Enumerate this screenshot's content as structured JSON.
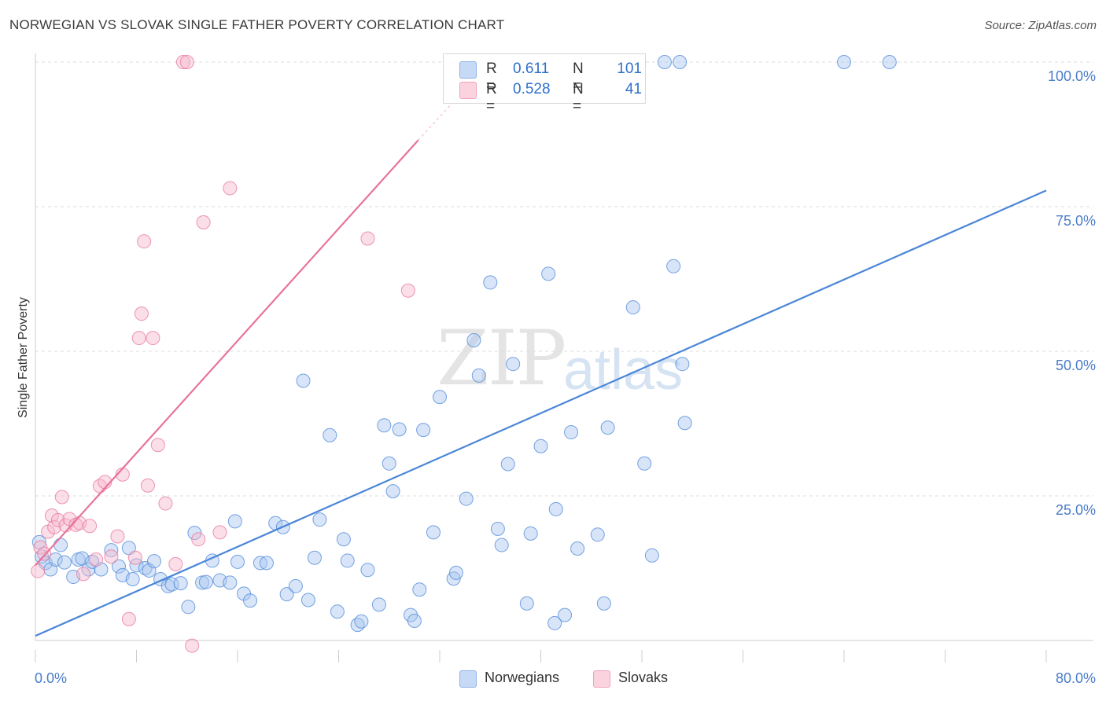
{
  "header": {
    "title": "NORWEGIAN VS SLOVAK SINGLE FATHER POVERTY CORRELATION CHART",
    "source": "Source: ZipAtlas.com"
  },
  "watermark": {
    "part1": "ZIP",
    "part2": "atlas"
  },
  "legend": {
    "rows": [
      {
        "r_label": "R =",
        "r_value": "0.611",
        "n_label": "N =",
        "n_value": "101",
        "color": "#a9c6ef"
      },
      {
        "r_label": "R =",
        "r_value": "0.528",
        "n_label": "N =",
        "n_value": "41",
        "color": "#f7b9cc"
      }
    ]
  },
  "bottom_legend": [
    {
      "label": "Norwegians",
      "color": "#a9c6ef"
    },
    {
      "label": "Slovaks",
      "color": "#f7b9cc"
    }
  ],
  "chart_data": {
    "type": "scatter",
    "title": "NORWEGIAN VS SLOVAK SINGLE FATHER POVERTY CORRELATION CHART",
    "xlabel": "",
    "ylabel": "Single Father Poverty",
    "xlim": [
      0,
      80
    ],
    "ylim": [
      0,
      100
    ],
    "x_tick_labels": [
      "0.0%",
      "80.0%"
    ],
    "y_tick_labels": [
      "25.0%",
      "50.0%",
      "75.0%",
      "100.0%"
    ],
    "y_ticks": [
      25,
      50,
      75,
      100
    ],
    "grid": true,
    "legend_position": "top-center",
    "series": [
      {
        "name": "Norwegians",
        "color": "#4a86d8",
        "fill": "#a9c6ef",
        "trend": {
          "x": [
            0,
            80
          ],
          "y": [
            0.8,
            77.8
          ]
        },
        "points": [
          [
            0.3,
            17.0
          ],
          [
            0.5,
            14.5
          ],
          [
            0.8,
            13.4
          ],
          [
            1.2,
            12.3
          ],
          [
            1.6,
            14.0
          ],
          [
            2.0,
            16.5
          ],
          [
            2.3,
            13.5
          ],
          [
            3.0,
            11.0
          ],
          [
            3.4,
            14.0
          ],
          [
            3.7,
            14.2
          ],
          [
            4.2,
            12.3
          ],
          [
            4.5,
            13.6
          ],
          [
            5.2,
            12.3
          ],
          [
            6.0,
            15.6
          ],
          [
            6.6,
            12.8
          ],
          [
            6.9,
            11.3
          ],
          [
            7.4,
            16.0
          ],
          [
            7.7,
            10.6
          ],
          [
            8.0,
            13.0
          ],
          [
            8.7,
            12.5
          ],
          [
            9.0,
            12.1
          ],
          [
            9.4,
            13.7
          ],
          [
            9.9,
            10.6
          ],
          [
            10.5,
            9.4
          ],
          [
            10.8,
            9.7
          ],
          [
            11.5,
            9.9
          ],
          [
            12.1,
            5.8
          ],
          [
            12.6,
            18.6
          ],
          [
            13.2,
            10.0
          ],
          [
            13.5,
            10.1
          ],
          [
            14.0,
            13.8
          ],
          [
            14.6,
            10.4
          ],
          [
            15.4,
            10.0
          ],
          [
            15.8,
            20.6
          ],
          [
            16.0,
            13.6
          ],
          [
            16.5,
            8.1
          ],
          [
            17.0,
            6.9
          ],
          [
            17.8,
            13.4
          ],
          [
            18.3,
            13.4
          ],
          [
            19.0,
            20.3
          ],
          [
            19.6,
            19.6
          ],
          [
            19.9,
            8.0
          ],
          [
            20.6,
            9.4
          ],
          [
            21.2,
            44.9
          ],
          [
            21.6,
            7.0
          ],
          [
            22.1,
            14.3
          ],
          [
            22.5,
            20.9
          ],
          [
            23.3,
            35.5
          ],
          [
            23.9,
            5.0
          ],
          [
            24.4,
            17.5
          ],
          [
            24.7,
            13.8
          ],
          [
            25.5,
            2.7
          ],
          [
            25.8,
            3.3
          ],
          [
            26.3,
            12.2
          ],
          [
            27.2,
            6.2
          ],
          [
            27.6,
            37.2
          ],
          [
            28.0,
            30.6
          ],
          [
            28.3,
            25.8
          ],
          [
            28.8,
            36.5
          ],
          [
            29.7,
            4.4
          ],
          [
            30.0,
            3.4
          ],
          [
            30.4,
            8.8
          ],
          [
            30.7,
            36.4
          ],
          [
            31.5,
            18.7
          ],
          [
            32.0,
            42.1
          ],
          [
            33.1,
            10.7
          ],
          [
            33.3,
            11.7
          ],
          [
            34.1,
            24.5
          ],
          [
            34.7,
            51.9
          ],
          [
            35.1,
            45.8
          ],
          [
            36.0,
            61.9
          ],
          [
            36.6,
            19.3
          ],
          [
            36.9,
            16.5
          ],
          [
            37.4,
            30.5
          ],
          [
            37.8,
            47.8
          ],
          [
            38.9,
            6.4
          ],
          [
            39.2,
            18.5
          ],
          [
            40.0,
            33.6
          ],
          [
            40.6,
            63.4
          ],
          [
            41.1,
            3.0
          ],
          [
            41.2,
            22.7
          ],
          [
            41.9,
            4.4
          ],
          [
            42.4,
            36.0
          ],
          [
            42.9,
            15.9
          ],
          [
            44.5,
            18.3
          ],
          [
            45.0,
            6.4
          ],
          [
            45.3,
            36.8
          ],
          [
            47.3,
            57.6
          ],
          [
            48.2,
            30.6
          ],
          [
            48.8,
            14.7
          ],
          [
            50.5,
            64.7
          ],
          [
            51.2,
            47.8
          ],
          [
            51.4,
            37.6
          ],
          [
            38.3,
            100.0
          ],
          [
            44.7,
            100.0
          ],
          [
            47.5,
            100.0
          ],
          [
            49.8,
            100.0
          ],
          [
            51.0,
            100.0
          ],
          [
            64.0,
            100.0
          ],
          [
            67.6,
            100.0
          ]
        ]
      },
      {
        "name": "Slovaks",
        "color": "#e8739a",
        "fill": "#f7b9cc",
        "trend": {
          "x": [
            0,
            30.3
          ],
          "y": [
            13.0,
            86.5
          ],
          "x_dashed_end": 34.5,
          "y_dashed_end": 96.5
        },
        "points": [
          [
            0.2,
            12.0
          ],
          [
            0.4,
            16.1
          ],
          [
            0.7,
            15.0
          ],
          [
            1.0,
            18.8
          ],
          [
            1.3,
            21.6
          ],
          [
            1.5,
            19.6
          ],
          [
            1.8,
            20.8
          ],
          [
            2.1,
            24.8
          ],
          [
            2.4,
            19.9
          ],
          [
            2.7,
            21.0
          ],
          [
            3.2,
            20.0
          ],
          [
            3.5,
            20.3
          ],
          [
            3.8,
            11.5
          ],
          [
            4.3,
            19.8
          ],
          [
            4.8,
            14.0
          ],
          [
            5.1,
            26.7
          ],
          [
            5.5,
            27.4
          ],
          [
            6.0,
            14.5
          ],
          [
            6.5,
            18.0
          ],
          [
            6.9,
            28.7
          ],
          [
            7.4,
            3.7
          ],
          [
            7.9,
            14.3
          ],
          [
            8.2,
            52.3
          ],
          [
            8.4,
            56.5
          ],
          [
            8.6,
            69.0
          ],
          [
            8.9,
            26.8
          ],
          [
            9.3,
            52.3
          ],
          [
            9.7,
            33.8
          ],
          [
            10.3,
            23.7
          ],
          [
            11.1,
            13.2
          ],
          [
            11.7,
            100.0
          ],
          [
            12.0,
            100.0
          ],
          [
            12.4,
            -0.9
          ],
          [
            12.9,
            17.5
          ],
          [
            13.3,
            72.3
          ],
          [
            14.6,
            18.7
          ],
          [
            15.4,
            78.2
          ],
          [
            26.3,
            69.5
          ],
          [
            29.5,
            60.5
          ]
        ]
      }
    ]
  }
}
